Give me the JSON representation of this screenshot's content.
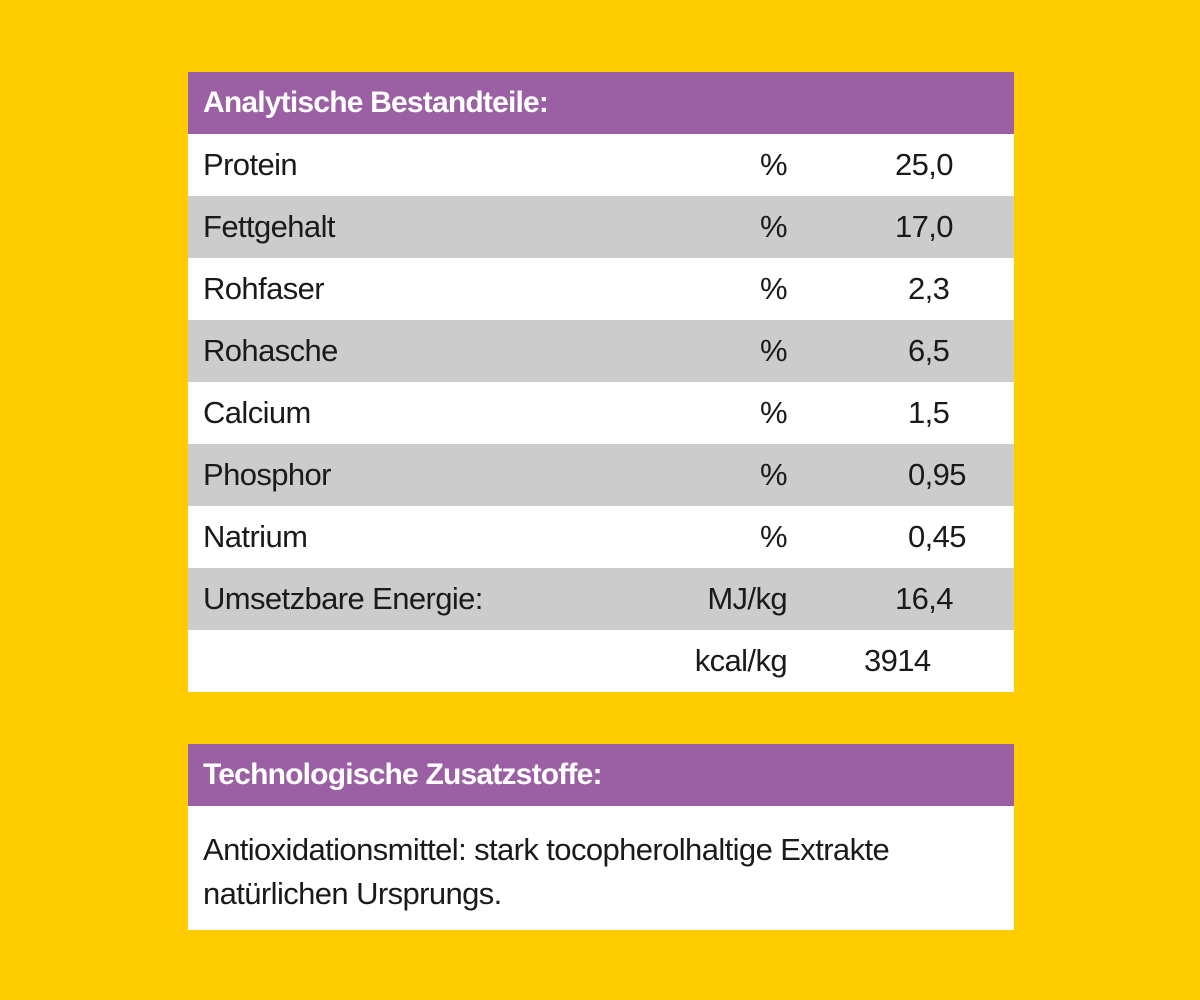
{
  "analysis": {
    "title": "Analytische Bestandteile:",
    "rows": [
      {
        "name": "Protein",
        "unit": "%",
        "value": "25,0"
      },
      {
        "name": "Fettgehalt",
        "unit": "%",
        "value": "17,0"
      },
      {
        "name": "Rohfaser",
        "unit": "%",
        "value": "2,3"
      },
      {
        "name": "Rohasche",
        "unit": "%",
        "value": "6,5"
      },
      {
        "name": "Calcium",
        "unit": "%",
        "value": "1,5"
      },
      {
        "name": "Phosphor",
        "unit": "%",
        "value": "0,95"
      },
      {
        "name": "Natrium",
        "unit": "%",
        "value": "0,45"
      },
      {
        "name": "Umsetzbare Energie:",
        "unit": "MJ/kg",
        "value": "16,4"
      },
      {
        "name": "",
        "unit": "kcal/kg",
        "value": "3914"
      }
    ]
  },
  "additives": {
    "title": "Technologische Zusatzstoffe:",
    "lines": [
      "Antioxidationsmittel: stark tocopherolhaltige Extrakte",
      "natürlichen Ursprungs."
    ]
  },
  "colors": {
    "background": "#ffcc00",
    "header": "#9b5fa3",
    "row_alt": "#cccccc",
    "row": "#ffffff"
  }
}
